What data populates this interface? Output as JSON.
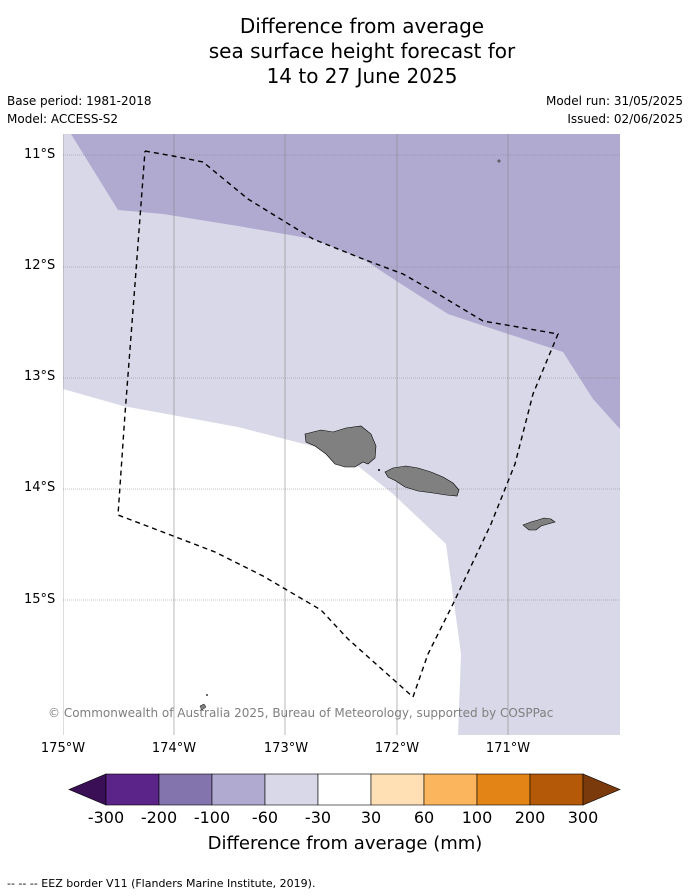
{
  "title": {
    "line1": "Difference from average",
    "line2": "sea surface height forecast for",
    "line3": "14 to 27 June 2025"
  },
  "meta": {
    "base_period": "Base period: 1981-2018",
    "model": "Model: ACCESS-S2",
    "model_run": "Model run: 31/05/2025",
    "issued": "Issued: 02/06/2025"
  },
  "map": {
    "lat_labels": [
      "11°S",
      "12°S",
      "13°S",
      "14°S",
      "15°S"
    ],
    "lon_labels": [
      "175°W",
      "174°W",
      "173°W",
      "172°W",
      "171°W"
    ],
    "credit": "© Commonwealth of Australia 2025, Bureau of Meteorology, supported by COSPPac",
    "colors": {
      "band_-100_-60": "#b0a9d0",
      "band_-60_-30": "#d8d8e8",
      "band_-30_30": "#ffffff",
      "land": "#808080",
      "eez": "#000000",
      "grid": "#888888"
    }
  },
  "colorbar": {
    "ticks": [
      "-300",
      "-200",
      "-100",
      "-60",
      "-30",
      "30",
      "60",
      "100",
      "200",
      "300"
    ],
    "colors": [
      "#3b0f55",
      "#5b2488",
      "#8474ae",
      "#b0a9d0",
      "#d8d8e8",
      "#ffffff",
      "#ffdfb3",
      "#fbb55c",
      "#e38417",
      "#b35908",
      "#7a3a0c"
    ],
    "label": "Difference from average (mm)"
  },
  "footer": "--  --  -- EEZ border V11 (Flanders Marine Institute, 2019)."
}
